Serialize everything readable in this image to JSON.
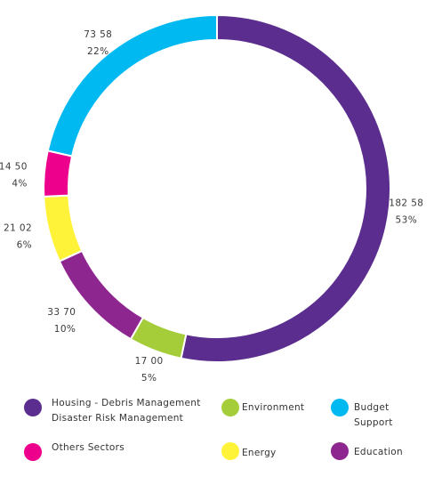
{
  "chart_data": {
    "type": "pie",
    "donut": true,
    "slices": [
      {
        "name": "Housing - Debris Management Disaster Risk Management",
        "value": 182.58,
        "percent": "53%",
        "value_label": "182 58",
        "color": "#5b2d8e"
      },
      {
        "name": "Environment",
        "value": 17.0,
        "percent": "5%",
        "value_label": "17 00",
        "color": "#a4cd39"
      },
      {
        "name": "Education",
        "value": 33.7,
        "percent": "10%",
        "value_label": "33 70",
        "color": "#8e268f"
      },
      {
        "name": "Energy",
        "value": 21.02,
        "percent": "6%",
        "value_label": "21 02",
        "color": "#fff33a"
      },
      {
        "name": "Others Sectors",
        "value": 14.5,
        "percent": "4%",
        "value_label": "14 50",
        "color": "#ec008c"
      },
      {
        "name": "Budget Support",
        "value": 73.58,
        "percent": "22%",
        "value_label": "73 58",
        "color": "#00b9f1"
      }
    ],
    "legend": [
      {
        "lines": [
          "Housing - Debris Management",
          "Disaster Risk Management"
        ],
        "color": "#5b2d8e"
      },
      {
        "lines": [
          "Environment"
        ],
        "color": "#a4cd39"
      },
      {
        "lines": [
          "Budget",
          "Support"
        ],
        "color": "#00b9f1"
      },
      {
        "lines": [
          "Others Sectors"
        ],
        "color": "#ec008c"
      },
      {
        "lines": [
          "Energy"
        ],
        "color": "#fff33a"
      },
      {
        "lines": [
          "Education"
        ],
        "color": "#8e268f"
      }
    ],
    "legend_placement": "bottom"
  }
}
